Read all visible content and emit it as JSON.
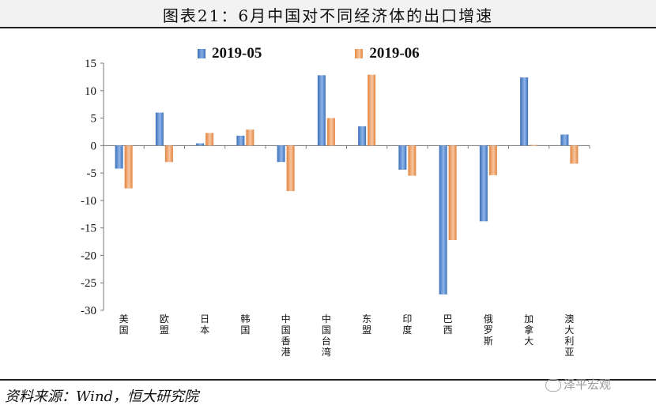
{
  "title": "图表21：6月中国对不同经济体的出口增速",
  "source": "资料来源：Wind，恒大研究院",
  "watermark": "泽平宏观",
  "chart_data": {
    "type": "bar",
    "categories": [
      "美国",
      "欧盟",
      "日本",
      "韩国",
      "中国香港",
      "中国台湾",
      "东盟",
      "印度",
      "巴西",
      "俄罗斯",
      "加拿大",
      "澳大利亚"
    ],
    "series": [
      {
        "name": "2019-05",
        "values": [
          -4.2,
          6.0,
          0.4,
          1.8,
          -3.0,
          12.8,
          3.5,
          -4.4,
          -27.1,
          -13.8,
          12.4,
          2.0
        ],
        "color": "#5b8fd6"
      },
      {
        "name": "2019-06",
        "values": [
          -7.8,
          -3.0,
          2.3,
          2.9,
          -8.3,
          5.0,
          12.9,
          -5.5,
          -17.2,
          -5.4,
          0.1,
          -3.3
        ],
        "color": "#f0a46a"
      }
    ],
    "yticks": [
      15,
      10,
      5,
      0,
      -5,
      -10,
      -15,
      -20,
      -25,
      -30
    ],
    "ylim": [
      -30,
      15
    ],
    "legend_position": "top",
    "grid": false
  }
}
